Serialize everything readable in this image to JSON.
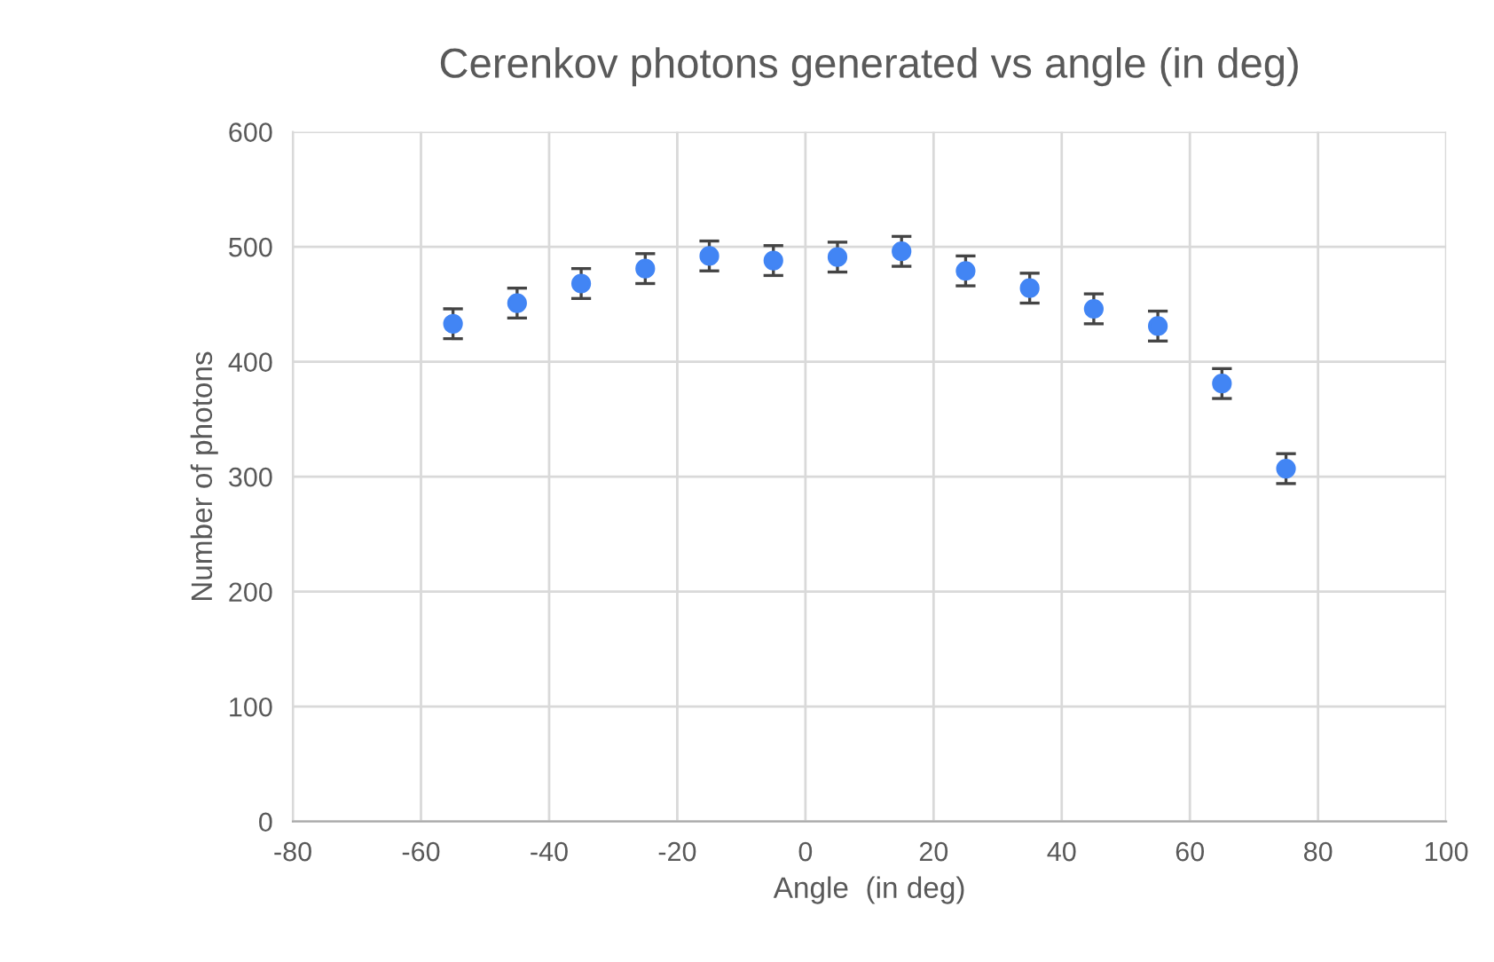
{
  "chart_data": {
    "type": "scatter",
    "title": "Cerenkov photons generated vs angle (in deg)",
    "xlabel": "Angle  (in deg)",
    "ylabel": "Number of photons",
    "x": [
      -55,
      -45,
      -35,
      -25,
      -15,
      -5,
      5,
      15,
      25,
      35,
      45,
      55,
      65,
      75
    ],
    "series": [
      {
        "color": "#4285f4",
        "values": [
          433,
          451,
          468,
          481,
          492,
          488,
          491,
          496,
          479,
          464,
          446,
          431,
          381,
          307
        ],
        "errors": [
          13,
          13,
          13,
          13,
          13,
          13,
          13,
          13,
          13,
          13,
          13,
          13,
          13,
          13
        ]
      }
    ],
    "xlim": [
      -80,
      100
    ],
    "xticks": [
      -80,
      -60,
      -40,
      -20,
      0,
      20,
      40,
      60,
      80,
      100
    ],
    "ylim": [
      0,
      600
    ],
    "yticks": [
      0,
      100,
      200,
      300,
      400,
      500,
      600
    ],
    "grid": true,
    "marker": "circle",
    "legend": false
  }
}
